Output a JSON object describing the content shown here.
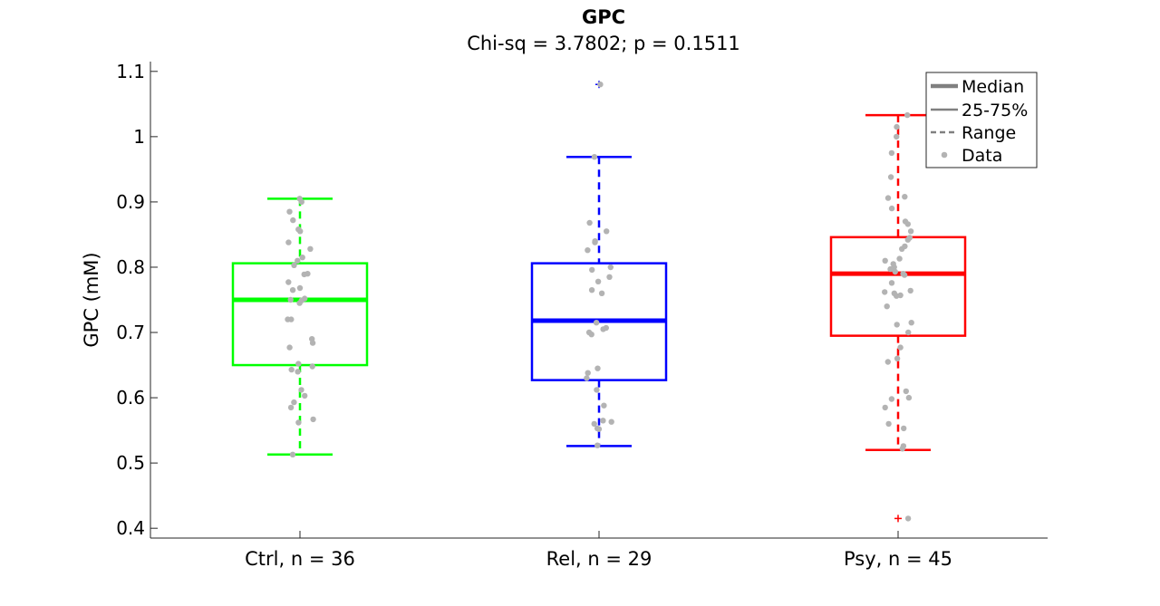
{
  "chart_data": {
    "type": "box",
    "title": "GPC",
    "subtitle": "Chi-sq = 3.7802; p = 0.1511",
    "xlabel": "",
    "ylabel": "GPC (mM)",
    "ylim": [
      0.385,
      1.115
    ],
    "yticks": [
      0.4,
      0.5,
      0.6,
      0.7,
      0.8,
      0.9,
      1,
      1.1
    ],
    "ytick_labels": [
      "0.4",
      "0.5",
      "0.6",
      "0.7",
      "0.8",
      "0.9",
      "1",
      "1.1"
    ],
    "grid": false,
    "legend": {
      "position": "top-right",
      "entries": [
        {
          "label": "Median",
          "style": "thick"
        },
        {
          "label": "25-75%",
          "style": "thin"
        },
        {
          "label": "Range",
          "style": "dashed"
        },
        {
          "label": "Data",
          "style": "dot"
        }
      ]
    },
    "point_color": "#b3b3b3",
    "groups": [
      {
        "label": "Ctrl, n = 36",
        "color": "#00ff00",
        "whisker_low": 0.513,
        "q1": 0.65,
        "median": 0.75,
        "q3": 0.806,
        "whisker_high": 0.905,
        "outliers": [],
        "points": [
          0.905,
          0.9,
          0.885,
          0.872,
          0.858,
          0.855,
          0.838,
          0.828,
          0.815,
          0.81,
          0.803,
          0.79,
          0.789,
          0.777,
          0.768,
          0.765,
          0.752,
          0.75,
          0.749,
          0.745,
          0.72,
          0.72,
          0.69,
          0.684,
          0.677,
          0.652,
          0.648,
          0.643,
          0.64,
          0.612,
          0.603,
          0.593,
          0.585,
          0.567,
          0.562,
          0.513
        ]
      },
      {
        "label": "Rel, n = 29",
        "color": "#0000ff",
        "whisker_low": 0.526,
        "q1": 0.627,
        "median": 0.718,
        "q3": 0.806,
        "whisker_high": 0.969,
        "outliers": [
          1.08
        ],
        "points": [
          1.08,
          0.969,
          0.868,
          0.855,
          0.84,
          0.838,
          0.826,
          0.8,
          0.796,
          0.785,
          0.778,
          0.765,
          0.76,
          0.715,
          0.707,
          0.705,
          0.7,
          0.697,
          0.645,
          0.638,
          0.63,
          0.612,
          0.588,
          0.565,
          0.563,
          0.56,
          0.553,
          0.552,
          0.527
        ]
      },
      {
        "label": "Psy, n = 45",
        "color": "#ff0000",
        "whisker_low": 0.52,
        "q1": 0.695,
        "median": 0.79,
        "q3": 0.846,
        "whisker_high": 1.033,
        "outliers": [
          0.415
        ],
        "points": [
          1.033,
          1.015,
          1.0,
          0.975,
          0.938,
          0.908,
          0.906,
          0.89,
          0.87,
          0.866,
          0.855,
          0.845,
          0.842,
          0.832,
          0.828,
          0.813,
          0.81,
          0.805,
          0.8,
          0.797,
          0.793,
          0.79,
          0.788,
          0.776,
          0.764,
          0.762,
          0.76,
          0.757,
          0.756,
          0.74,
          0.715,
          0.712,
          0.7,
          0.677,
          0.66,
          0.655,
          0.61,
          0.6,
          0.598,
          0.585,
          0.56,
          0.553,
          0.526,
          0.522,
          0.415
        ]
      }
    ]
  }
}
